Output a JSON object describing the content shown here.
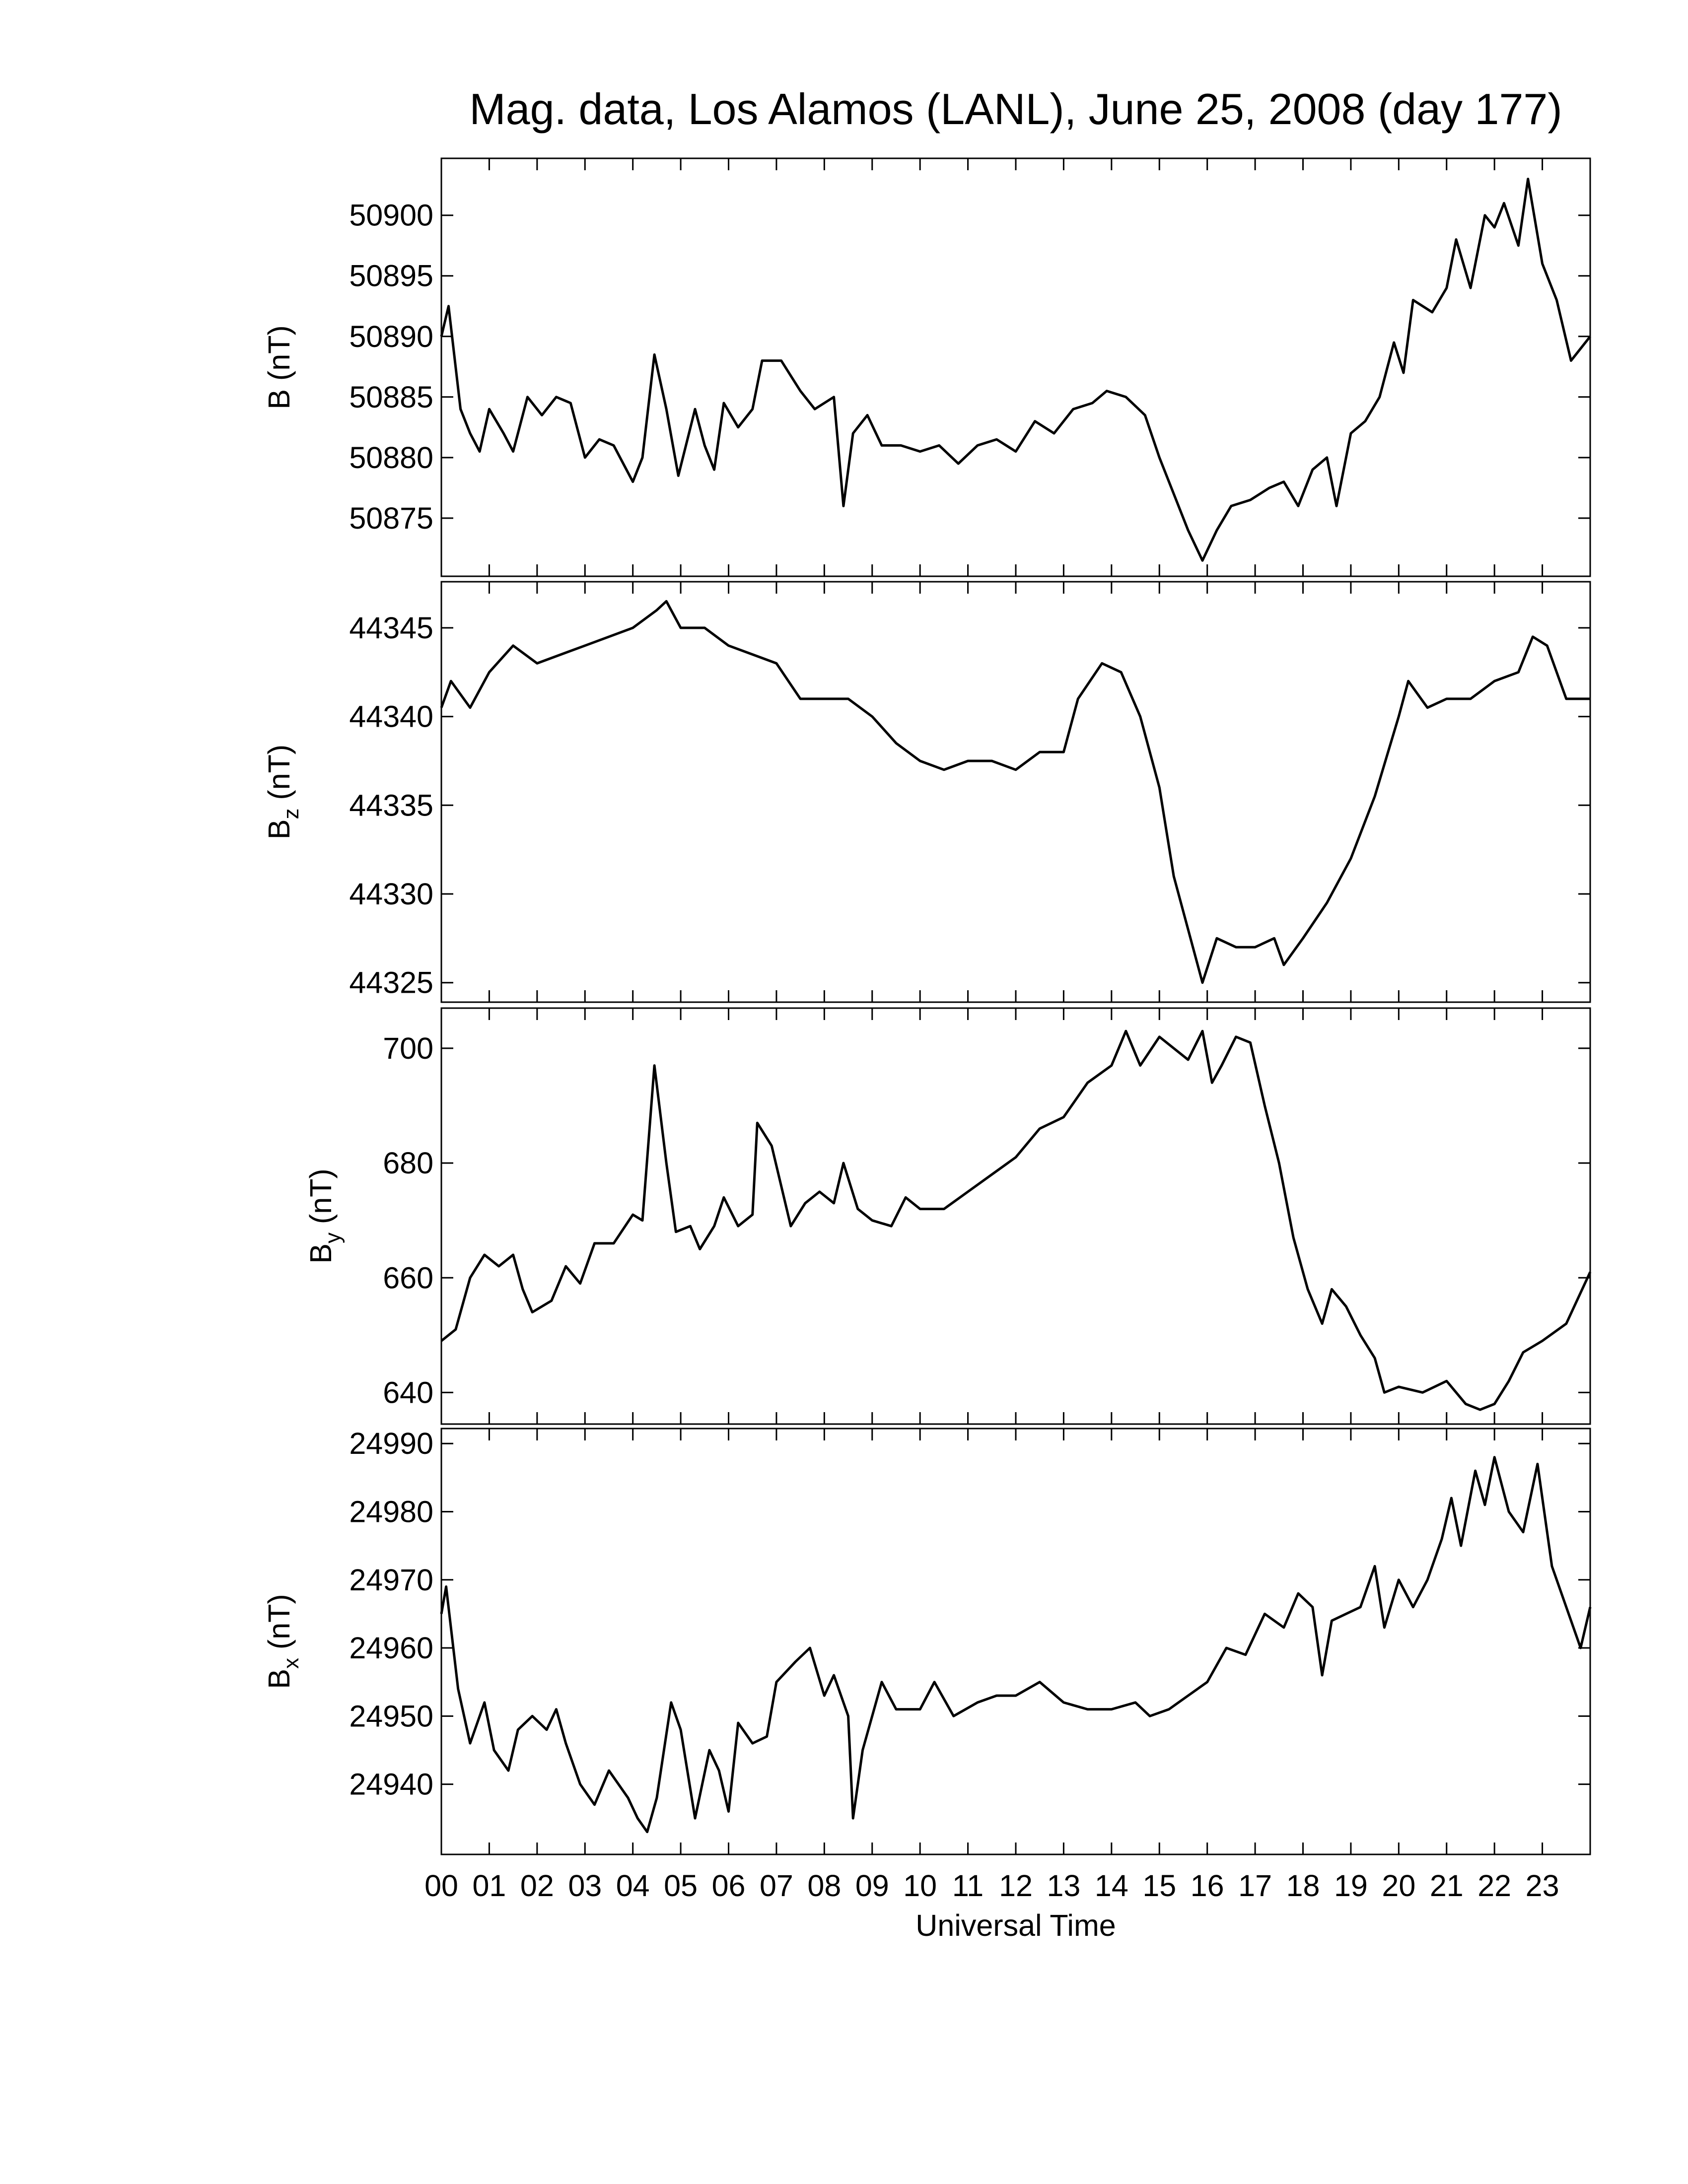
{
  "chart_data": [
    {
      "type": "line",
      "title": "Mag. data, Los Alamos (LANL), June 25, 2008 (day 177)",
      "ylabel": "B",
      "ylabel_unit": "(nT)",
      "ylim": [
        50870.2,
        50904.7
      ],
      "yticks": [
        50875,
        50880,
        50885,
        50890,
        50895,
        50900
      ],
      "color": "#000000",
      "x": [
        0,
        0.15,
        0.4,
        0.6,
        0.8,
        1.0,
        1.3,
        1.5,
        1.8,
        2.1,
        2.4,
        2.7,
        3.0,
        3.3,
        3.6,
        4.0,
        4.2,
        4.45,
        4.7,
        4.95,
        5.3,
        5.5,
        5.7,
        5.9,
        6.2,
        6.5,
        6.7,
        7.1,
        7.5,
        7.8,
        8.2,
        8.4,
        8.6,
        8.9,
        9.2,
        9.6,
        10.0,
        10.4,
        10.8,
        11.2,
        11.6,
        12.0,
        12.4,
        12.8,
        13.2,
        13.6,
        13.9,
        14.3,
        14.7,
        15.0,
        15.3,
        15.6,
        15.9,
        16.2,
        16.5,
        16.9,
        17.3,
        17.6,
        17.9,
        18.2,
        18.5,
        18.7,
        19.0,
        19.3,
        19.6,
        19.9,
        20.1,
        20.3,
        20.7,
        21.0,
        21.2,
        21.5,
        21.8,
        22.0,
        22.2,
        22.5,
        22.7,
        23.0,
        23.3,
        23.6,
        24.0
      ],
      "values": [
        50890,
        50892.5,
        50884,
        50882,
        50880.5,
        50884,
        50882,
        50880.5,
        50885,
        50883.5,
        50885,
        50884.5,
        50880,
        50881.5,
        50881,
        50878,
        50880,
        50888.5,
        50884,
        50878.5,
        50884,
        50881,
        50879,
        50884.5,
        50882.5,
        50884,
        50888,
        50888,
        50885.5,
        50884,
        50885,
        50876,
        50882,
        50883.5,
        50881,
        50881,
        50880.5,
        50881,
        50879.5,
        50881,
        50881.5,
        50880.5,
        50883,
        50882,
        50884,
        50884.5,
        50885.5,
        50885,
        50883.5,
        50880,
        50877,
        50874,
        50871.5,
        50874,
        50876,
        50876.5,
        50877.5,
        50878,
        50876,
        50879,
        50880,
        50876,
        50882,
        50883,
        50885,
        50889.5,
        50887,
        50893,
        50892,
        50894,
        50898,
        50894,
        50900,
        50899,
        50901,
        50897.5,
        50903,
        50896,
        50893,
        50888,
        50890
      ]
    },
    {
      "type": "line",
      "ylabel": "B",
      "ylabel_sub": "z",
      "ylabel_unit": "(nT)",
      "ylim": [
        44323.9,
        44347.6
      ],
      "yticks": [
        44325,
        44330,
        44335,
        44340,
        44345
      ],
      "color": "#000000",
      "x": [
        0,
        0.2,
        0.6,
        1.0,
        1.5,
        2.0,
        2.5,
        3.0,
        3.5,
        4.0,
        4.5,
        4.7,
        5.0,
        5.5,
        6.0,
        6.5,
        7.0,
        7.5,
        8.0,
        8.5,
        9.0,
        9.5,
        10.0,
        10.5,
        11.0,
        11.5,
        12.0,
        12.5,
        13.0,
        13.3,
        13.8,
        14.2,
        14.6,
        15.0,
        15.3,
        15.6,
        15.9,
        16.2,
        16.6,
        17.0,
        17.4,
        17.6,
        18.0,
        18.5,
        19.0,
        19.5,
        20.0,
        20.2,
        20.6,
        21.0,
        21.5,
        22.0,
        22.5,
        22.8,
        23.1,
        23.5,
        24.0
      ],
      "values": [
        44340.5,
        44342,
        44340.5,
        44342.5,
        44344,
        44343,
        44343.5,
        44344,
        44344.5,
        44345,
        44346,
        44346.5,
        44345,
        44345,
        44344,
        44343.5,
        44343,
        44341,
        44341,
        44341,
        44340,
        44338.5,
        44337.5,
        44337,
        44337.5,
        44337.5,
        44337,
        44338,
        44338,
        44341,
        44343,
        44342.5,
        44340,
        44336,
        44331,
        44328,
        44325,
        44327.5,
        44327,
        44327,
        44327.5,
        44326,
        44327.5,
        44329.5,
        44332,
        44335.5,
        44340,
        44342,
        44340.5,
        44341,
        44341,
        44342,
        44342.5,
        44344.5,
        44344,
        44341,
        44341
      ]
    },
    {
      "type": "line",
      "ylabel": "B",
      "ylabel_sub": "y",
      "ylabel_unit": "(nT)",
      "ylim": [
        634.5,
        707
      ],
      "yticks": [
        640,
        660,
        680,
        700
      ],
      "color": "#000000",
      "x": [
        0,
        0.3,
        0.6,
        0.9,
        1.2,
        1.5,
        1.7,
        1.9,
        2.3,
        2.6,
        2.9,
        3.2,
        3.6,
        4.0,
        4.2,
        4.45,
        4.7,
        4.9,
        5.2,
        5.4,
        5.7,
        5.9,
        6.2,
        6.5,
        6.6,
        6.9,
        7.3,
        7.6,
        7.9,
        8.2,
        8.4,
        8.7,
        9.0,
        9.4,
        9.7,
        10.0,
        10.5,
        11.0,
        11.5,
        12.0,
        12.5,
        13.0,
        13.5,
        14.0,
        14.3,
        14.6,
        15.0,
        15.3,
        15.6,
        15.9,
        16.1,
        16.3,
        16.6,
        16.9,
        17.2,
        17.5,
        17.8,
        18.1,
        18.4,
        18.6,
        18.9,
        19.2,
        19.5,
        19.7,
        20.0,
        20.5,
        21.0,
        21.4,
        21.7,
        22.0,
        22.3,
        22.6,
        23.0,
        23.5,
        24.0
      ],
      "values": [
        649,
        651,
        660,
        664,
        662,
        664,
        658,
        654,
        656,
        662,
        659,
        666,
        666,
        671,
        670,
        697,
        680,
        668,
        669,
        665,
        669,
        674,
        669,
        671,
        687,
        683,
        669,
        673,
        675,
        673,
        680,
        672,
        670,
        669,
        674,
        672,
        672,
        675,
        678,
        681,
        686,
        688,
        694,
        697,
        703,
        697,
        702,
        700,
        698,
        703,
        694,
        697,
        702,
        701,
        690,
        680,
        667,
        658,
        652,
        658,
        655,
        650,
        646,
        640,
        641,
        640,
        642,
        638,
        637,
        638,
        642,
        647,
        649,
        652,
        661
      ]
    },
    {
      "type": "line",
      "ylabel": "B",
      "ylabel_sub": "x",
      "ylabel_unit": "(nT)",
      "xlabel": "Universal Time",
      "xlim": [
        0,
        24
      ],
      "xticks": [
        {
          "value": 0,
          "label": "00"
        },
        {
          "value": 1,
          "label": "01"
        },
        {
          "value": 2,
          "label": "02"
        },
        {
          "value": 3,
          "label": "03"
        },
        {
          "value": 4,
          "label": "04"
        },
        {
          "value": 5,
          "label": "05"
        },
        {
          "value": 6,
          "label": "06"
        },
        {
          "value": 7,
          "label": "07"
        },
        {
          "value": 8,
          "label": "08"
        },
        {
          "value": 9,
          "label": "09"
        },
        {
          "value": 10,
          "label": "10"
        },
        {
          "value": 11,
          "label": "11"
        },
        {
          "value": 12,
          "label": "12"
        },
        {
          "value": 13,
          "label": "13"
        },
        {
          "value": 14,
          "label": "14"
        },
        {
          "value": 15,
          "label": "15"
        },
        {
          "value": 16,
          "label": "16"
        },
        {
          "value": 17,
          "label": "17"
        },
        {
          "value": 18,
          "label": "18"
        },
        {
          "value": 19,
          "label": "19"
        },
        {
          "value": 20,
          "label": "20"
        },
        {
          "value": 21,
          "label": "21"
        },
        {
          "value": 22,
          "label": "22"
        },
        {
          "value": 23,
          "label": "23"
        }
      ],
      "ylim": [
        24929.7,
        24992.2
      ],
      "yticks": [
        24940,
        24950,
        24960,
        24970,
        24980,
        24990
      ],
      "color": "#000000",
      "x": [
        0,
        0.1,
        0.35,
        0.6,
        0.9,
        1.1,
        1.4,
        1.6,
        1.9,
        2.2,
        2.4,
        2.6,
        2.9,
        3.2,
        3.5,
        3.9,
        4.1,
        4.3,
        4.5,
        4.8,
        5.0,
        5.3,
        5.6,
        5.8,
        6.0,
        6.2,
        6.5,
        6.8,
        7.0,
        7.4,
        7.7,
        8.0,
        8.2,
        8.5,
        8.6,
        8.8,
        9.2,
        9.5,
        10.0,
        10.3,
        10.7,
        11.2,
        11.6,
        12.0,
        12.5,
        13.0,
        13.5,
        14.0,
        14.5,
        14.8,
        15.2,
        15.6,
        16.0,
        16.4,
        16.8,
        17.2,
        17.6,
        17.9,
        18.2,
        18.4,
        18.6,
        18.9,
        19.2,
        19.5,
        19.7,
        20.0,
        20.3,
        20.6,
        20.9,
        21.1,
        21.3,
        21.6,
        21.8,
        22.0,
        22.3,
        22.6,
        22.9,
        23.2,
        23.5,
        23.8,
        24.0
      ],
      "values": [
        24965,
        24969,
        24954,
        24946,
        24952,
        24945,
        24942,
        24948,
        24950,
        24948,
        24951,
        24946,
        24940,
        24937,
        24942,
        24938,
        24935,
        24933,
        24938,
        24952,
        24948,
        24935,
        24945,
        24942,
        24936,
        24949,
        24946,
        24947,
        24955,
        24958,
        24960,
        24953,
        24956,
        24950,
        24935,
        24945,
        24955,
        24951,
        24951,
        24955,
        24950,
        24952,
        24953,
        24953,
        24955,
        24952,
        24951,
        24951,
        24952,
        24950,
        24951,
        24953,
        24955,
        24960,
        24959,
        24965,
        24963,
        24968,
        24966,
        24956,
        24964,
        24965,
        24966,
        24972,
        24963,
        24970,
        24966,
        24970,
        24976,
        24982,
        24975,
        24986,
        24981,
        24988,
        24980,
        24977,
        24987,
        24972,
        24966,
        24960,
        24966
      ]
    }
  ]
}
